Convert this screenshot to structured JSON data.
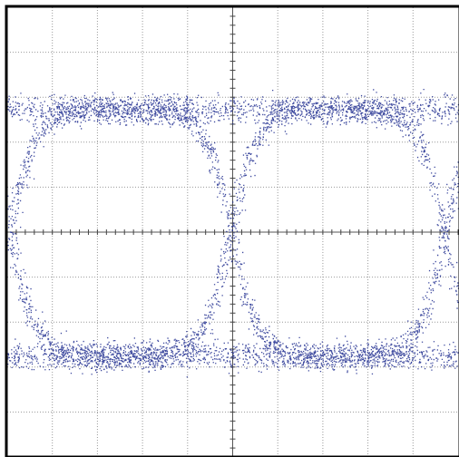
{
  "chart_data": {
    "type": "eye-diagram",
    "title": "",
    "xlabel": "",
    "ylabel": "",
    "grid": true,
    "grid_divisions": {
      "x": 10,
      "y": 10
    },
    "minor_ticks_per_division": 5,
    "xlim": [
      0,
      10
    ],
    "ylim": [
      -5,
      5
    ],
    "levels": {
      "high": 2.75,
      "low": -2.75
    },
    "level_noise": 0.28,
    "unit_interval": 4.75,
    "crossings_x": [
      0.05,
      4.95,
      9.7
    ],
    "rise_time": 1.4,
    "hit_count": 16000,
    "trace_color": "#1c2a8e",
    "grid_color": "#9a9a9a",
    "background_color": "#ffffff",
    "frame_color": "#000000"
  }
}
